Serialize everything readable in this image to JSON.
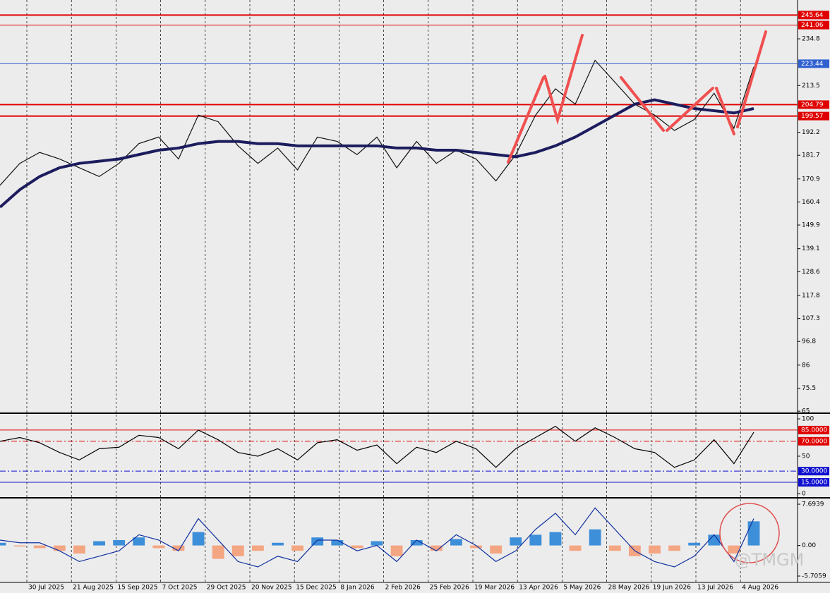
{
  "chart_data": [
    {
      "type": "line",
      "ylim": [
        64.4,
        252.5
      ],
      "yticks": [
        234.8,
        213.5,
        192.2,
        181.7,
        170.9,
        160.4,
        149.9,
        139.1,
        128.6,
        117.8,
        107.3,
        96.8,
        86,
        75.5,
        65
      ],
      "levels": [
        245.64,
        241.06,
        223.44,
        204.79,
        199.57
      ],
      "level_colors": [
        "#e00000",
        "#e00000",
        "#3060d0",
        "#e00000",
        "#e00000"
      ],
      "series": [
        {
          "color": "#111111",
          "values": [
            168,
            178,
            183,
            180,
            176,
            172,
            178,
            187,
            190,
            180,
            200,
            197,
            186,
            178,
            185,
            175,
            190,
            188,
            182,
            190,
            176,
            188,
            178,
            184,
            180,
            170,
            182,
            200,
            212,
            205,
            225,
            215,
            205,
            200,
            193,
            198,
            210,
            194,
            222
          ]
        },
        {
          "color": "#1c1c5e",
          "values": [
            158,
            166,
            172,
            176,
            178,
            179,
            180,
            182,
            184,
            185,
            187,
            188,
            188,
            187,
            187,
            186,
            186,
            186,
            186,
            186,
            185,
            185,
            184,
            184,
            183,
            182,
            181,
            183,
            186,
            190,
            195,
            200,
            205,
            207,
            205,
            203,
            202,
            201,
            203
          ]
        }
      ]
    },
    {
      "type": "line",
      "ylim": [
        -4.8,
        105.7
      ],
      "yticks": [
        100,
        50,
        0
      ],
      "levels": [
        {
          "value": 85,
          "label": "85.0000"
        },
        {
          "value": 70,
          "label": "70.0000"
        },
        {
          "value": 30,
          "label": "30.0000"
        },
        {
          "value": 15,
          "label": "15.0000"
        }
      ],
      "level_colors": [
        "#e00000",
        "#e00000",
        "#1010d0",
        "#1010d0"
      ],
      "series": [
        {
          "color": "#000000",
          "values": [
            70,
            75,
            68,
            55,
            45,
            60,
            62,
            78,
            75,
            60,
            85,
            72,
            55,
            50,
            60,
            45,
            68,
            72,
            58,
            65,
            40,
            62,
            55,
            70,
            60,
            35,
            60,
            75,
            90,
            70,
            88,
            75,
            60,
            55,
            35,
            45,
            72,
            40,
            82
          ]
        }
      ]
    },
    {
      "type": "bar",
      "ylim": [
        -6.76,
        8.62
      ],
      "yticks": [
        7.6939,
        {
          "value": 0,
          "label": "0.00"
        },
        -5.7059
      ],
      "positive_color": "#3d8fd9",
      "negative_color": "#f4a582",
      "values": [
        0.5,
        -0.2,
        -0.5,
        -1,
        -1.5,
        0.8,
        1,
        1.5,
        -0.5,
        -1,
        2.5,
        -2.5,
        -2,
        -1,
        0.5,
        -1,
        1.5,
        1,
        -0.5,
        0.8,
        -2,
        1,
        -1,
        1.2,
        -0.5,
        -1.5,
        1.5,
        2,
        2.5,
        -1,
        3,
        -1,
        -2,
        -1.5,
        -1,
        0.5,
        2,
        -1.5,
        4.5
      ],
      "series": [
        {
          "color": "#1030a0",
          "values": [
            1,
            0.5,
            0.5,
            -1,
            -3,
            -2,
            -1,
            2,
            1,
            -1,
            5,
            1,
            -3,
            -4,
            -2,
            -3,
            1,
            1,
            -1,
            0,
            -3,
            1,
            -1,
            2,
            0,
            -3,
            -1,
            3,
            6,
            2,
            7,
            3,
            -1,
            -3,
            -4,
            -2,
            2,
            -3,
            5
          ]
        }
      ]
    }
  ],
  "time_axis": [
    "30 Jul 2025",
    "21 Aug 2025",
    "15 Sep 2025",
    "7 Oct 2025",
    "29 Oct 2025",
    "20 Nov 2025",
    "15 Dec 2025",
    "8 Jan 2026",
    "2 Feb 2026",
    "25 Feb 2026",
    "19 Mar 2026",
    "13 Apr 2026",
    "5 May 2026",
    "28 May 2026",
    "19 Jun 2026",
    "13 Jul 2026",
    "4 Aug 2026"
  ],
  "watermark": "@TMGM"
}
